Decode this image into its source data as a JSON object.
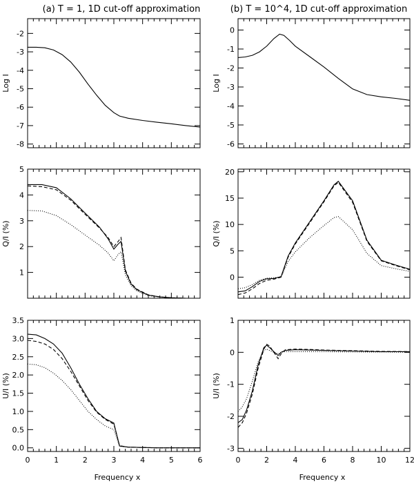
{
  "titles": {
    "a": "(a) T = 1, 1D cut-off approximation",
    "b": "(b) T = 10^4, 1D cut-off approximation"
  },
  "xlabel": "Frequency x",
  "chart_data": [
    {
      "id": "a-logI",
      "type": "line",
      "ylabel": "Log I",
      "xlim": [
        0,
        6
      ],
      "ylim": [
        -8.2,
        -1.2
      ],
      "xticks": [
        0,
        1,
        2,
        3,
        4,
        5,
        6
      ],
      "yticks": [
        -8,
        -7,
        -6,
        -5,
        -4,
        -3,
        -2
      ],
      "show_xtick_labels": false,
      "series": [
        {
          "style": "solid",
          "x": [
            0,
            0.3,
            0.6,
            0.9,
            1.2,
            1.5,
            1.8,
            2.1,
            2.4,
            2.7,
            3.0,
            3.2,
            3.5,
            4.0,
            4.5,
            5.0,
            5.5,
            6.0
          ],
          "y": [
            -2.75,
            -2.75,
            -2.78,
            -2.9,
            -3.15,
            -3.55,
            -4.1,
            -4.75,
            -5.35,
            -5.9,
            -6.3,
            -6.48,
            -6.6,
            -6.72,
            -6.82,
            -6.9,
            -7.0,
            -7.08
          ]
        }
      ]
    },
    {
      "id": "b-logI",
      "type": "line",
      "ylabel": "Log I",
      "xlim": [
        0,
        12
      ],
      "ylim": [
        -6.2,
        0.6
      ],
      "xticks": [
        0,
        2,
        4,
        6,
        8,
        10,
        12
      ],
      "yticks": [
        -6,
        -5,
        -4,
        -3,
        -2,
        -1,
        0
      ],
      "show_xtick_labels": false,
      "series": [
        {
          "style": "solid",
          "x": [
            0,
            0.5,
            1,
            1.5,
            2,
            2.5,
            2.9,
            3.2,
            3.6,
            4,
            5,
            6,
            7,
            8,
            9,
            10,
            11,
            12
          ],
          "y": [
            -1.45,
            -1.42,
            -1.33,
            -1.15,
            -0.85,
            -0.45,
            -0.22,
            -0.28,
            -0.55,
            -0.85,
            -1.4,
            -1.95,
            -2.55,
            -3.1,
            -3.4,
            -3.52,
            -3.6,
            -3.7
          ]
        }
      ]
    },
    {
      "id": "a-QI",
      "type": "line",
      "ylabel": "Q/I (%)",
      "xlim": [
        0,
        6
      ],
      "ylim": [
        0,
        5
      ],
      "xticks": [
        0,
        1,
        2,
        3,
        4,
        5,
        6
      ],
      "yticks": [
        1,
        2,
        3,
        4,
        5
      ],
      "show_xtick_labels": false,
      "series": [
        {
          "style": "solid",
          "x": [
            0,
            0.5,
            1.0,
            1.5,
            2.0,
            2.5,
            2.8,
            3.0,
            3.15,
            3.25,
            3.4,
            3.6,
            3.8,
            4.2,
            4.6,
            5.0,
            5.5,
            6.0
          ],
          "y": [
            4.4,
            4.4,
            4.28,
            3.85,
            3.3,
            2.75,
            2.3,
            1.9,
            2.1,
            2.2,
            1.05,
            0.55,
            0.33,
            0.12,
            0.05,
            0.02,
            0.0,
            0.0
          ]
        },
        {
          "style": "dashed",
          "x": [
            0,
            0.5,
            1.0,
            1.5,
            2.0,
            2.5,
            2.8,
            3.0,
            3.15,
            3.25,
            3.4,
            3.6,
            3.8,
            4.2,
            4.6,
            5.0,
            5.5,
            6.0
          ],
          "y": [
            4.35,
            4.32,
            4.2,
            3.8,
            3.25,
            2.72,
            2.35,
            2.0,
            2.2,
            2.35,
            1.1,
            0.58,
            0.35,
            0.13,
            0.05,
            0.02,
            0.0,
            0.0
          ]
        },
        {
          "style": "dotted",
          "x": [
            0,
            0.5,
            1.0,
            1.5,
            2.0,
            2.5,
            2.8,
            3.0,
            3.15,
            3.25,
            3.4,
            3.6,
            3.8,
            4.2,
            4.6,
            5.0,
            5.5,
            6.0
          ],
          "y": [
            3.4,
            3.38,
            3.2,
            2.85,
            2.45,
            2.05,
            1.75,
            1.45,
            1.7,
            1.8,
            0.9,
            0.48,
            0.28,
            0.1,
            0.04,
            0.02,
            0.0,
            0.0
          ]
        }
      ]
    },
    {
      "id": "b-QI",
      "type": "line",
      "ylabel": "Q/I (%)",
      "xlim": [
        0,
        12
      ],
      "ylim": [
        -4,
        20.5
      ],
      "xticks": [
        0,
        2,
        4,
        6,
        8,
        10,
        12
      ],
      "yticks": [
        0,
        5,
        10,
        15,
        20
      ],
      "show_xtick_labels": false,
      "series": [
        {
          "style": "solid",
          "x": [
            0,
            0.5,
            1,
            1.5,
            2,
            2.5,
            3,
            3.5,
            4,
            5,
            6,
            6.7,
            7,
            8,
            9,
            10,
            11,
            12
          ],
          "y": [
            -2.8,
            -2.6,
            -1.8,
            -0.8,
            -0.3,
            -0.25,
            0.1,
            4.0,
            6.5,
            10.5,
            14.5,
            17.5,
            18.2,
            14.5,
            7.0,
            3.2,
            2.3,
            1.5
          ]
        },
        {
          "style": "dashed",
          "x": [
            0,
            0.5,
            1,
            1.5,
            2,
            2.5,
            3,
            3.5,
            4,
            5,
            6,
            6.7,
            7,
            8,
            9,
            10,
            11,
            12
          ],
          "y": [
            -3.3,
            -3.0,
            -2.2,
            -1.2,
            -0.6,
            -0.4,
            0.0,
            3.8,
            6.3,
            10.3,
            14.3,
            17.3,
            18.0,
            14.2,
            6.8,
            3.1,
            2.2,
            1.4
          ]
        },
        {
          "style": "dotted",
          "x": [
            0,
            0.5,
            1,
            1.5,
            2,
            2.5,
            3,
            3.5,
            4,
            5,
            6,
            6.7,
            7,
            8,
            9,
            10,
            11,
            12
          ],
          "y": [
            -2.2,
            -2.0,
            -1.4,
            -0.6,
            -0.2,
            -0.1,
            0.0,
            3.0,
            4.8,
            7.5,
            9.8,
            11.3,
            11.5,
            9.0,
            4.5,
            2.2,
            1.6,
            1.1
          ]
        }
      ]
    },
    {
      "id": "a-UI",
      "type": "line",
      "ylabel": "U/I (%)",
      "xlim": [
        0,
        6
      ],
      "ylim": [
        -0.1,
        3.5
      ],
      "xticks": [
        0,
        1,
        2,
        3,
        4,
        5,
        6
      ],
      "yticks": [
        0.0,
        0.5,
        1.0,
        1.5,
        2.0,
        2.5,
        3.0,
        3.5
      ],
      "ytick_labels": [
        "0.0",
        "0.5",
        "1.0",
        "1.5",
        "2.0",
        "2.5",
        "3.0",
        "3.5"
      ],
      "show_xtick_labels": true,
      "series": [
        {
          "style": "solid",
          "x": [
            0,
            0.3,
            0.6,
            0.9,
            1.2,
            1.5,
            1.8,
            2.1,
            2.4,
            2.7,
            3.0,
            3.2,
            3.5,
            4.0,
            4.5,
            5.0,
            6.0
          ],
          "y": [
            3.12,
            3.1,
            3.0,
            2.85,
            2.6,
            2.2,
            1.75,
            1.35,
            1.0,
            0.8,
            0.68,
            0.05,
            0.02,
            0.01,
            0.0,
            0.0,
            0.0
          ]
        },
        {
          "style": "dashed",
          "x": [
            0,
            0.3,
            0.6,
            0.9,
            1.2,
            1.5,
            1.8,
            2.1,
            2.4,
            2.7,
            3.0,
            3.2,
            3.5,
            4.0,
            4.5,
            5.0,
            6.0
          ],
          "y": [
            2.95,
            2.92,
            2.85,
            2.7,
            2.45,
            2.1,
            1.7,
            1.3,
            0.98,
            0.78,
            0.65,
            0.06,
            0.02,
            0.01,
            0.0,
            0.0,
            0.0
          ]
        },
        {
          "style": "dotted",
          "x": [
            0,
            0.3,
            0.6,
            0.9,
            1.2,
            1.5,
            1.8,
            2.1,
            2.4,
            2.7,
            3.0,
            3.2,
            3.5,
            4.0,
            4.5,
            5.0,
            6.0
          ],
          "y": [
            2.3,
            2.28,
            2.2,
            2.05,
            1.85,
            1.6,
            1.3,
            1.0,
            0.78,
            0.6,
            0.5,
            0.04,
            0.02,
            0.01,
            0.0,
            0.0,
            0.0
          ]
        }
      ]
    },
    {
      "id": "b-UI",
      "type": "line",
      "ylabel": "U/I (%)",
      "xlim": [
        0,
        12
      ],
      "ylim": [
        -3.1,
        1.0
      ],
      "xticks": [
        0,
        2,
        4,
        6,
        8,
        10,
        12
      ],
      "yticks": [
        -3,
        -2,
        -1,
        0,
        1
      ],
      "show_xtick_labels": true,
      "series": [
        {
          "style": "solid",
          "x": [
            0,
            0.3,
            0.6,
            1,
            1.4,
            1.8,
            2.0,
            2.2,
            2.5,
            2.8,
            3.0,
            3.3,
            4,
            5,
            6,
            8,
            10,
            12
          ],
          "y": [
            -2.2,
            -2.1,
            -1.8,
            -1.2,
            -0.4,
            0.15,
            0.22,
            0.15,
            0.02,
            -0.1,
            0.0,
            0.06,
            0.08,
            0.07,
            0.06,
            0.04,
            0.02,
            0.02
          ]
        },
        {
          "style": "dashed",
          "x": [
            0,
            0.3,
            0.6,
            1,
            1.4,
            1.8,
            2.0,
            2.2,
            2.5,
            2.8,
            3.0,
            3.3,
            4,
            5,
            6,
            8,
            10,
            12
          ],
          "y": [
            -2.35,
            -2.2,
            -1.9,
            -1.3,
            -0.5,
            0.1,
            0.25,
            0.2,
            0.0,
            -0.2,
            -0.05,
            0.08,
            0.1,
            0.09,
            0.07,
            0.05,
            0.03,
            0.02
          ]
        },
        {
          "style": "dotted",
          "x": [
            0,
            0.3,
            0.6,
            1,
            1.4,
            1.8,
            2.0,
            2.2,
            2.5,
            2.8,
            3.0,
            3.3,
            4,
            5,
            6,
            8,
            10,
            12
          ],
          "y": [
            -1.85,
            -1.7,
            -1.45,
            -0.9,
            -0.3,
            0.05,
            0.1,
            0.06,
            0.0,
            -0.05,
            0.0,
            0.02,
            0.02,
            0.02,
            0.02,
            0.01,
            0.01,
            0.0
          ]
        }
      ]
    }
  ]
}
